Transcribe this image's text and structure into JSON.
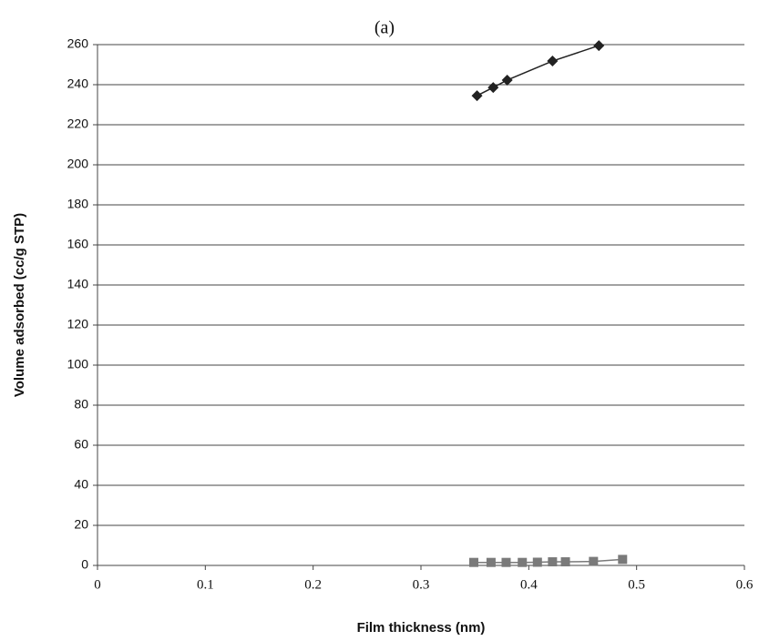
{
  "chart_data": {
    "type": "line",
    "title": "(a)",
    "x_label": "Film thickness (nm)",
    "y_label": "Volume adsorbed (cc/g STP)",
    "series": [
      {
        "color": "#222222",
        "marker": "diamond",
        "x": [
          0.352,
          0.367,
          0.38,
          0.422,
          0.465
        ],
        "values": [
          234.5,
          238.6,
          242.3,
          251.8,
          259.5
        ]
      },
      {
        "color": "#7a7a7a",
        "marker": "square",
        "x": [
          0.349,
          0.365,
          0.379,
          0.394,
          0.408,
          0.422,
          0.434,
          0.46,
          0.487
        ],
        "values": [
          1.5,
          1.5,
          1.5,
          1.5,
          1.6,
          1.8,
          1.8,
          2,
          3
        ]
      }
    ],
    "xlim": [
      0,
      0.6
    ],
    "xticks": [
      0,
      0.1,
      0.2,
      0.3,
      0.4,
      0.5,
      0.6
    ],
    "ylim": [
      0,
      260
    ],
    "yticks": [
      0,
      20,
      40,
      60,
      80,
      100,
      120,
      140,
      160,
      180,
      200,
      220,
      240,
      260
    ],
    "grid": true
  }
}
